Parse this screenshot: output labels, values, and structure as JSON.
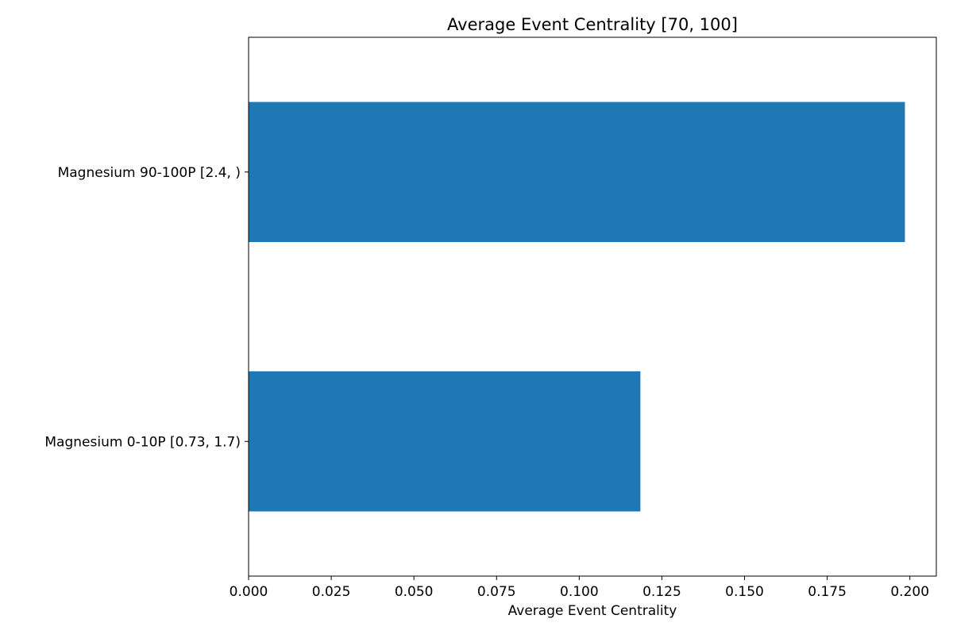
{
  "chart_data": {
    "type": "bar",
    "orientation": "horizontal",
    "title": "Average Event Centrality [70, 100]",
    "xlabel": "Average Event Centrality",
    "ylabel": "",
    "categories": [
      "Magnesium 0-10P [0.73, 1.7)",
      "Magnesium 90-100P [2.4, )"
    ],
    "values": [
      0.1185,
      0.1985
    ],
    "xlim": [
      0,
      0.208
    ],
    "xticks": [
      0.0,
      0.025,
      0.05,
      0.075,
      0.1,
      0.125,
      0.15,
      0.175,
      0.2
    ],
    "xtick_labels": [
      "0.000",
      "0.025",
      "0.050",
      "0.075",
      "0.100",
      "0.125",
      "0.150",
      "0.175",
      "0.200"
    ],
    "grid": false,
    "legend": "none",
    "bar_color": "#1f77b4"
  }
}
